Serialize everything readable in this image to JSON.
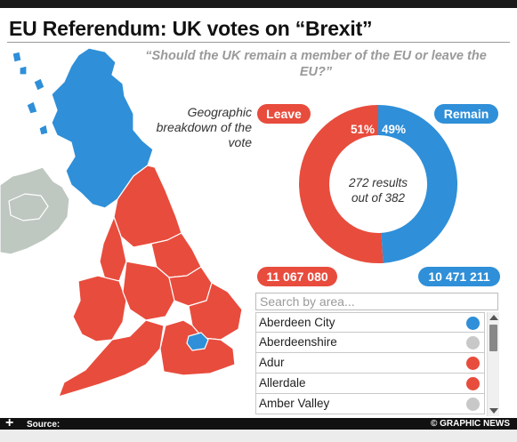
{
  "header": {
    "title": "EU Referendum: UK votes on “Brexit”",
    "question": "“Should the UK remain a member of the EU or leave the EU?”"
  },
  "map": {
    "caption": "Geographic breakdown of the vote",
    "colors": {
      "leave": "#e84c3d",
      "remain": "#2f8fd8",
      "other": "#bfc7c1"
    }
  },
  "results": {
    "leave_label": "Leave",
    "remain_label": "Remain",
    "leave_pct": 51,
    "remain_pct": 49,
    "leave_pct_text": "51%",
    "remain_pct_text": "49%",
    "counted_text": "272 results out of 382",
    "counted_line1": "272 results",
    "counted_line2": "out of 382",
    "leave_votes": "11 067 080",
    "remain_votes": "10 471 211"
  },
  "search": {
    "placeholder": "Search by area..."
  },
  "areas": [
    {
      "name": "Aberdeen City",
      "result": "remain",
      "color": "#2f8fd8"
    },
    {
      "name": "Aberdeenshire",
      "result": "pending",
      "color": "#c8c8c8"
    },
    {
      "name": "Adur",
      "result": "leave",
      "color": "#e84c3d"
    },
    {
      "name": "Allerdale",
      "result": "leave",
      "color": "#e84c3d"
    },
    {
      "name": "Amber Valley",
      "result": "pending",
      "color": "#c8c8c8"
    }
  ],
  "footer": {
    "source_label": "Source:",
    "credit": "© GRAPHIC NEWS"
  }
}
